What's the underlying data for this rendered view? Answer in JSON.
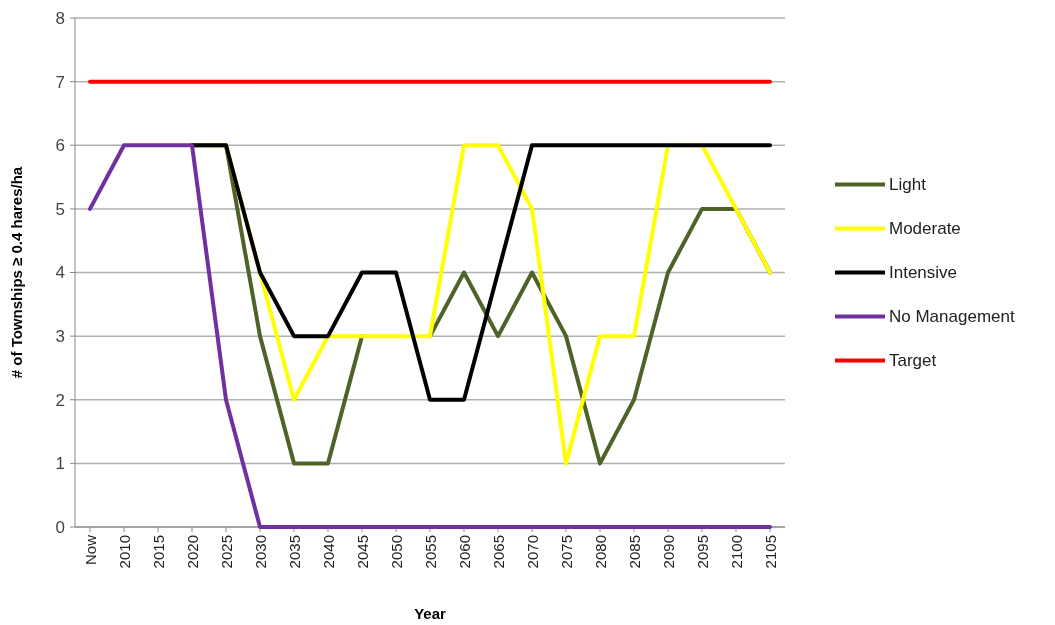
{
  "chart_data": {
    "type": "line",
    "xlabel": "Year",
    "ylabel": "# of Townships ≥ 0.4 hares/ha",
    "categories": [
      "Now",
      "2010",
      "2015",
      "2020",
      "2025",
      "2030",
      "2035",
      "2040",
      "2045",
      "2050",
      "2055",
      "2060",
      "2065",
      "2070",
      "2075",
      "2080",
      "2085",
      "2090",
      "2095",
      "2100",
      "2105"
    ],
    "series": [
      {
        "name": "Light",
        "color": "#4f6228",
        "values": [
          null,
          null,
          null,
          6,
          6,
          3,
          1,
          1,
          3,
          null,
          3,
          4,
          3,
          4,
          3,
          1,
          2,
          4,
          5,
          5,
          4
        ]
      },
      {
        "name": "Moderate",
        "color": "#ffff00",
        "values": [
          null,
          null,
          null,
          6,
          6,
          4,
          2,
          3,
          3,
          3,
          3,
          6,
          6,
          5,
          1,
          3,
          3,
          6,
          6,
          5,
          4
        ]
      },
      {
        "name": "Intensive",
        "color": "#000000",
        "values": [
          null,
          null,
          null,
          6,
          6,
          4,
          3,
          3,
          4,
          4,
          2,
          2,
          4,
          6,
          6,
          6,
          6,
          6,
          6,
          6,
          6
        ]
      },
      {
        "name": "No Management",
        "color": "#7030a0",
        "values": [
          5,
          6,
          6,
          6,
          2,
          0,
          0,
          0,
          0,
          0,
          0,
          0,
          0,
          0,
          0,
          0,
          0,
          0,
          0,
          0,
          0
        ]
      },
      {
        "name": "Target",
        "color": "#ff0000",
        "values": [
          7,
          7,
          7,
          7,
          7,
          7,
          7,
          7,
          7,
          7,
          7,
          7,
          7,
          7,
          7,
          7,
          7,
          7,
          7,
          7,
          7
        ]
      }
    ],
    "ylim": [
      0,
      8
    ],
    "yticks": [
      0,
      1,
      2,
      3,
      4,
      5,
      6,
      7,
      8
    ],
    "grid": "y",
    "legend": "right",
    "marker": "none",
    "line_style": "solid"
  }
}
